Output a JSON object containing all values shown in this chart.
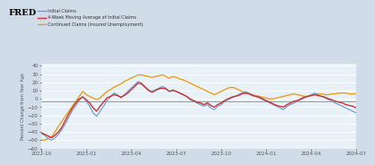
{
  "legend": [
    {
      "label": "Initial Claims",
      "color": "#6699cc",
      "lw": 0.8
    },
    {
      "label": "4-Week Moving Average of Initial Claims",
      "color": "#cc3333",
      "lw": 1.0
    },
    {
      "label": "Continued Claims (Insured Unemployment)",
      "color": "#e8a020",
      "lw": 1.0
    }
  ],
  "ylabel": "Percent Change from Year Ago",
  "ylim": [
    -60,
    42
  ],
  "yticks": [
    -60,
    -50,
    -40,
    -30,
    -20,
    -10,
    0,
    10,
    20,
    30,
    40
  ],
  "hline_y": -3,
  "hline_color": "#999999",
  "bg_color": "#d0dce8",
  "plot_bg": "#e8f0f8",
  "grid_color": "#ffffff",
  "x_labels": [
    "2022-10",
    "2023-01",
    "2023-04",
    "2023-07",
    "2023-10",
    "2024-01",
    "2024-04",
    "2024-07"
  ],
  "initial_claims": [
    -42,
    -44,
    -48,
    -50,
    -47,
    -43,
    -37,
    -30,
    -22,
    -14,
    -8,
    -2,
    3,
    -3,
    -9,
    -17,
    -21,
    -15,
    -9,
    -2,
    2,
    7,
    5,
    1,
    5,
    9,
    13,
    17,
    21,
    19,
    15,
    11,
    9,
    11,
    13,
    15,
    13,
    9,
    11,
    9,
    7,
    5,
    3,
    -1,
    -3,
    -5,
    -7,
    -9,
    -7,
    -11,
    -13,
    -9,
    -7,
    -3,
    -1,
    1,
    3,
    5,
    7,
    9,
    7,
    5,
    3,
    1,
    -1,
    -3,
    -5,
    -7,
    -9,
    -11,
    -13,
    -9,
    -7,
    -5,
    -3,
    -1,
    1,
    3,
    5,
    7,
    5,
    3,
    1,
    -1,
    -3,
    -5,
    -7,
    -9,
    -11,
    -13,
    -15,
    -17
  ],
  "ma_claims": [
    -41,
    -43,
    -45,
    -47,
    -44,
    -40,
    -34,
    -26,
    -18,
    -11,
    -5,
    0,
    2,
    -1,
    -5,
    -11,
    -15,
    -9,
    -4,
    1,
    3,
    5,
    4,
    2,
    4,
    7,
    11,
    15,
    19,
    18,
    14,
    10,
    8,
    10,
    12,
    13,
    12,
    9,
    10,
    9,
    7,
    5,
    3,
    0,
    -2,
    -4,
    -5,
    -7,
    -5,
    -8,
    -10,
    -7,
    -5,
    -2,
    0,
    2,
    3,
    4,
    6,
    7,
    6,
    4,
    3,
    2,
    0,
    -2,
    -4,
    -6,
    -8,
    -9,
    -10,
    -7,
    -5,
    -3,
    -2,
    0,
    2,
    3,
    4,
    5,
    4,
    3,
    2,
    0,
    -1,
    -3,
    -4,
    -5,
    -7,
    -8,
    -9,
    -11
  ],
  "continued_claims": [
    -50,
    -50,
    -48,
    -46,
    -40,
    -33,
    -27,
    -21,
    -15,
    -9,
    -3,
    3,
    9,
    5,
    3,
    1,
    -1,
    1,
    5,
    9,
    11,
    14,
    16,
    18,
    21,
    23,
    25,
    27,
    29,
    29,
    28,
    27,
    26,
    27,
    28,
    29,
    27,
    25,
    27,
    26,
    24,
    23,
    21,
    19,
    17,
    15,
    13,
    11,
    9,
    7,
    5,
    7,
    9,
    11,
    13,
    14,
    13,
    11,
    9,
    7,
    6,
    5,
    4,
    3,
    2,
    1,
    0,
    0,
    1,
    2,
    3,
    4,
    5,
    6,
    5,
    4,
    3,
    3,
    4,
    5,
    6,
    6,
    5,
    5,
    6,
    6,
    7,
    7,
    7,
    6,
    6,
    6
  ],
  "fred_text": "FRED",
  "fred_fontsize": 7,
  "legend_fontsize": 3.5,
  "tick_fontsize": 4.0,
  "ylabel_fontsize": 3.5
}
